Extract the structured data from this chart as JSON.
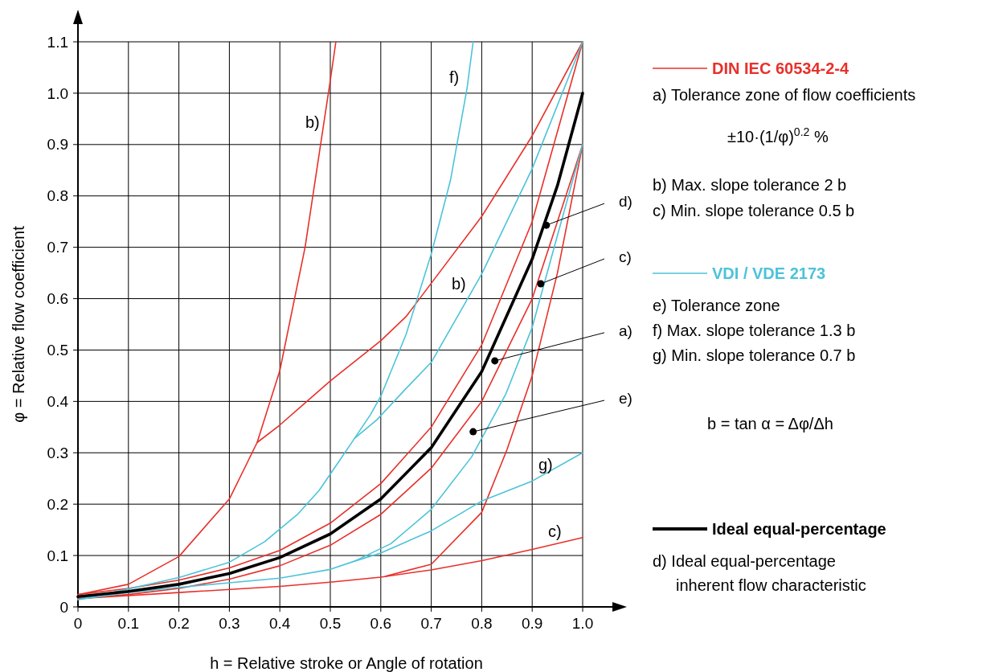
{
  "chart_data": {
    "type": "line",
    "xlabel": "h = Relative stroke or Angle of rotation",
    "ylabel": "φ = Relative flow coefficient",
    "xlim": [
      0,
      1
    ],
    "ylim": [
      0,
      1.1
    ],
    "xticks": [
      0,
      0.1,
      0.2,
      0.3,
      0.4,
      0.5,
      0.6,
      0.7,
      0.8,
      0.9,
      {
        "value": 1,
        "label": "1.0"
      }
    ],
    "yticks": [
      0,
      0.1,
      0.2,
      0.3,
      0.4,
      0.5,
      0.6,
      0.7,
      0.8,
      0.9,
      {
        "value": 1,
        "label": "1.0"
      },
      1.1
    ],
    "grid": true,
    "legend": "right",
    "marker": "none",
    "line_style": "solid",
    "series": [
      {
        "name": "DIN IEC 60534-2-4",
        "color": "#e8302a",
        "x": [
          0,
          0.1,
          0.2,
          0.3,
          0.4,
          0.5,
          0.6,
          0.7,
          0.8,
          0.9,
          1
        ],
        "values": [
          0.024,
          0.036,
          0.052,
          0.076,
          0.11,
          0.163,
          0.24,
          0.35,
          0.51,
          0.75,
          1.1
        ]
      },
      {
        "color": "#e8302a",
        "x": [
          0,
          0.1,
          0.2,
          0.3,
          0.4,
          0.5,
          0.6,
          0.7,
          0.8,
          0.9,
          1
        ],
        "values": [
          0.016,
          0.024,
          0.036,
          0.054,
          0.08,
          0.12,
          0.18,
          0.27,
          0.4,
          0.6,
          0.9
        ]
      },
      {
        "color": "#e8302a",
        "x": [
          0,
          0.1,
          0.2,
          0.3,
          0.355,
          0.4,
          0.45,
          0.5,
          0.511
        ],
        "values": [
          0.024,
          0.044,
          0.098,
          0.21,
          0.32,
          0.46,
          0.7,
          1.025,
          1.1
        ]
      },
      {
        "color": "#e8302a",
        "x": [
          0.355,
          0.4,
          0.5,
          0.6,
          0.65,
          0.7,
          0.8,
          0.9,
          1
        ],
        "values": [
          0.32,
          0.354,
          0.44,
          0.518,
          0.565,
          0.63,
          0.76,
          0.917,
          1.1
        ]
      },
      {
        "color": "#e8302a",
        "x": [
          0,
          0.2,
          0.4,
          0.5,
          0.6,
          0.7,
          0.8,
          0.9,
          1
        ],
        "values": [
          0.016,
          0.028,
          0.04,
          0.048,
          0.058,
          0.072,
          0.09,
          0.112,
          0.135
        ]
      },
      {
        "color": "#e8302a",
        "x": [
          0.61,
          0.7,
          0.8,
          0.85,
          0.9,
          0.95,
          1
        ],
        "values": [
          0.06,
          0.083,
          0.184,
          0.306,
          0.45,
          0.65,
          0.9
        ]
      },
      {
        "name": "VDI / VDE 2173",
        "color": "#4cc3d9",
        "x": [
          0,
          0.1,
          0.2,
          0.3,
          0.37,
          0.435,
          0.478,
          0.515,
          0.548,
          0.58,
          0.6,
          0.65,
          0.7,
          0.738,
          0.771,
          0.783
        ],
        "values": [
          0.014,
          0.035,
          0.057,
          0.087,
          0.127,
          0.18,
          0.227,
          0.28,
          0.328,
          0.375,
          0.41,
          0.53,
          0.687,
          0.83,
          1.01,
          1.1
        ]
      },
      {
        "color": "#4cc3d9",
        "x": [
          0.548,
          0.592,
          0.65,
          0.7,
          0.8,
          0.9,
          1
        ],
        "values": [
          0.328,
          0.364,
          0.425,
          0.476,
          0.648,
          0.853,
          1.1
        ]
      },
      {
        "color": "#4cc3d9",
        "x": [
          0,
          0.1,
          0.2,
          0.3,
          0.4,
          0.5,
          0.548,
          0.6,
          0.7,
          0.8,
          0.9,
          1
        ],
        "values": [
          0.014,
          0.028,
          0.038,
          0.047,
          0.056,
          0.073,
          0.089,
          0.105,
          0.148,
          0.206,
          0.245,
          0.3
        ]
      },
      {
        "color": "#4cc3d9",
        "x": [
          0.548,
          0.62,
          0.7,
          0.78,
          0.8,
          0.848,
          0.9,
          0.95,
          1
        ],
        "values": [
          0.089,
          0.123,
          0.19,
          0.292,
          0.328,
          0.415,
          0.544,
          0.723,
          0.9
        ]
      },
      {
        "name": "Ideal equal-percentage",
        "color": "#000000",
        "x": [
          0,
          0.1,
          0.2,
          0.3,
          0.4,
          0.5,
          0.6,
          0.7,
          0.8,
          0.9,
          0.95,
          1
        ],
        "values": [
          0.02,
          0.03,
          0.044,
          0.065,
          0.096,
          0.142,
          0.21,
          0.31,
          0.458,
          0.677,
          0.82,
          1
        ]
      }
    ],
    "annotations": [
      "a) Tolerance zone of flow coefficients",
      "±10·(1/φ)$^{0.2}$ %",
      "b) Max. slope tolerance 2 b",
      "c) Min. slope tolerance 0.5 b",
      "e) Tolerance zone",
      "f)  Max. slope tolerance 1.3 b",
      "g) Min. slope tolerance 0.7 b",
      "b = tan α = Δφ/Δh",
      "d) Ideal equal-percentage inherent flow characteristic",
      "b)",
      "f)",
      "b)",
      "g)",
      "c)",
      {
        "text": "d)",
        "x": 0.928,
        "y": 0.743
      },
      {
        "text": "c)",
        "x": 0.917,
        "y": 0.629
      },
      {
        "text": "a)",
        "x": 0.826,
        "y": 0.479
      },
      {
        "text": "e)",
        "x": 0.783,
        "y": 0.341
      }
    ]
  }
}
